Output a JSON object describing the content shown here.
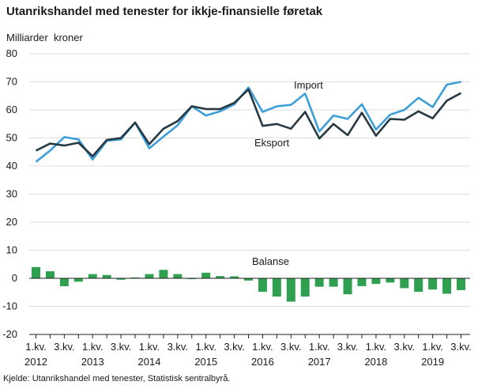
{
  "title": "Utanrikshandel med tenester for ikkje-finansielle føretak",
  "source": "Kjelde: Utanrikshandel med tenester, Statistisk sentralbyrå.",
  "chart_data": {
    "type": "line",
    "ylabel": "Milliarder  kroner",
    "ylim": [
      -20,
      80
    ],
    "yticks": [
      -20,
      -10,
      0,
      10,
      20,
      30,
      40,
      50,
      60,
      70,
      80
    ],
    "grid": true,
    "xtick_labels": [
      "1.kv.",
      "3.kv.",
      "1.kv.",
      "3.kv.",
      "1.kv.",
      "3.kv.",
      "1.kv.",
      "3.kv.",
      "1.kv.",
      "3.kv.",
      "1.kv.",
      "3.kv.",
      "1.kv.",
      "3.kv.",
      "1.kv.",
      "3.kv."
    ],
    "years": [
      "2012",
      "2013",
      "2014",
      "2015",
      "2016",
      "2017",
      "2018",
      "2019"
    ],
    "categories": [
      "2012K1",
      "2012K2",
      "2012K3",
      "2012K4",
      "2013K1",
      "2013K2",
      "2013K3",
      "2013K4",
      "2014K1",
      "2014K2",
      "2014K3",
      "2014K4",
      "2015K1",
      "2015K2",
      "2015K3",
      "2015K4",
      "2016K1",
      "2016K2",
      "2016K3",
      "2016K4",
      "2017K1",
      "2017K2",
      "2017K3",
      "2017K4",
      "2018K1",
      "2018K2",
      "2018K3",
      "2018K4",
      "2019K1",
      "2019K2",
      "2019K3"
    ],
    "series": [
      {
        "name": "Import",
        "color": "#3d9fd9",
        "values": [
          41.5,
          45.5,
          50.3,
          49.5,
          42.3,
          49.0,
          49.5,
          55.5,
          46.3,
          50.5,
          54.5,
          61.3,
          58.0,
          59.5,
          62.0,
          68.0,
          59.3,
          61.3,
          61.8,
          65.8,
          52.3,
          58.0,
          56.8,
          62.0,
          53.0,
          58.3,
          60.0,
          64.3,
          61.0,
          69.0,
          70.0
        ]
      },
      {
        "name": "Eksport",
        "color": "#273a44",
        "values": [
          45.5,
          48.0,
          47.3,
          48.3,
          43.5,
          49.3,
          50.0,
          55.5,
          47.8,
          53.3,
          56.0,
          61.3,
          60.3,
          60.3,
          62.5,
          67.3,
          54.3,
          55.0,
          53.3,
          59.3,
          49.8,
          55.0,
          51.0,
          59.0,
          50.8,
          56.8,
          56.5,
          59.5,
          57.0,
          63.3,
          66.0
        ]
      },
      {
        "name": "Balanse",
        "type": "bar",
        "color": "#2ea04f",
        "values": [
          4.0,
          2.5,
          -2.8,
          -1.2,
          1.5,
          1.2,
          -0.5,
          0.3,
          1.5,
          3.0,
          1.5,
          -0.3,
          2.0,
          0.8,
          0.7,
          -0.8,
          -4.8,
          -6.5,
          -8.3,
          -6.5,
          -3.0,
          -3.0,
          -5.7,
          -2.8,
          -2.0,
          -1.5,
          -3.5,
          -4.8,
          -4.0,
          -5.5,
          -4.2
        ]
      }
    ],
    "annotations": {
      "import_label": "Import",
      "eksport_label": "Eksport",
      "balanse_label": "Balanse"
    }
  }
}
